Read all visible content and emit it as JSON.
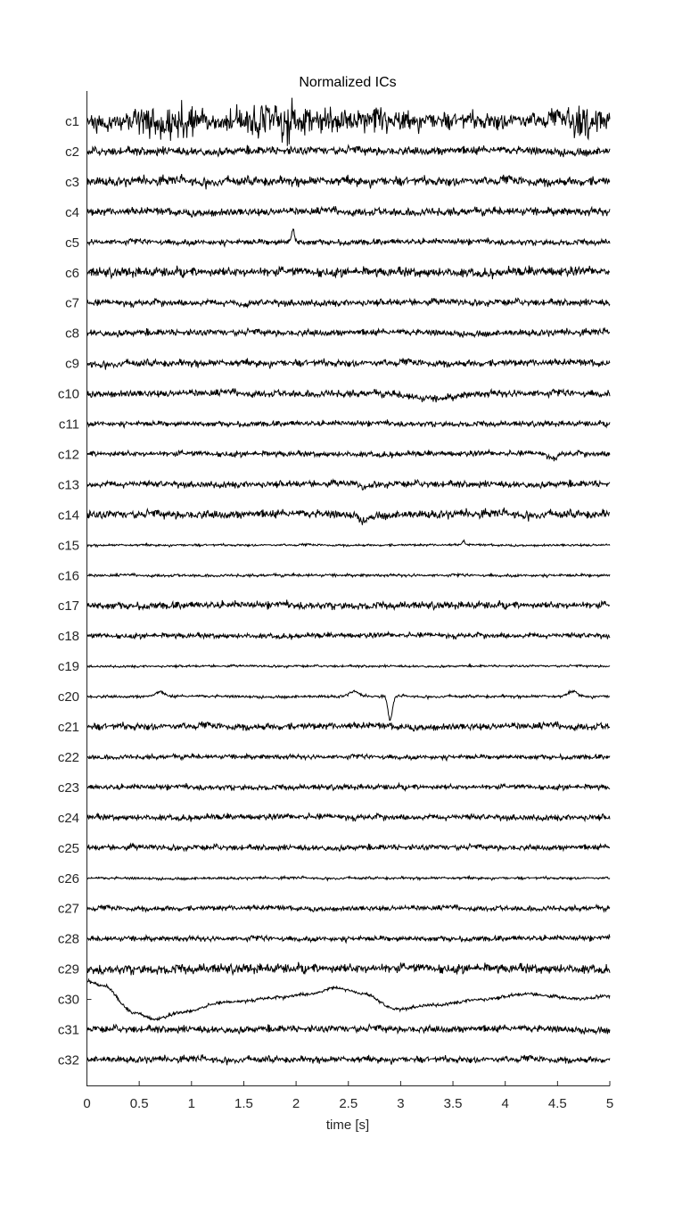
{
  "chart_data": {
    "type": "line",
    "title": "Normalized ICs",
    "xlabel": "time [s]",
    "ylabel": "",
    "xlim": [
      0,
      5
    ],
    "xticks": [
      "0",
      "0.5",
      "1",
      "1.5",
      "2",
      "2.5",
      "3",
      "3.5",
      "4",
      "4.5",
      "5"
    ],
    "grid": false,
    "colors": {
      "trace": "#000000",
      "highlight_label": "#ff0000",
      "label": "#262626",
      "axis": "#262626"
    },
    "highlighted_channel": "c1",
    "series": [
      {
        "name": "c1",
        "amp": 0.95,
        "features": [
          {
            "t": 0.8,
            "w": 0.35,
            "kind": "burst",
            "a": 2.2
          },
          {
            "t": 1.9,
            "w": 0.6,
            "kind": "burst",
            "a": 2.0
          },
          {
            "t": 2.8,
            "w": 0.3,
            "kind": "burst",
            "a": 1.5
          },
          {
            "t": 4.8,
            "w": 0.22,
            "kind": "burst",
            "a": 2.0
          }
        ]
      },
      {
        "name": "c2",
        "amp": 0.45,
        "features": []
      },
      {
        "name": "c3",
        "amp": 0.5,
        "features": []
      },
      {
        "name": "c4",
        "amp": 0.42,
        "features": []
      },
      {
        "name": "c5",
        "amp": 0.3,
        "features": [
          {
            "t": 1.97,
            "w": 0.02,
            "kind": "spike",
            "a": -2.0
          }
        ]
      },
      {
        "name": "c6",
        "amp": 0.5,
        "features": []
      },
      {
        "name": "c7",
        "amp": 0.35,
        "features": [
          {
            "t": 1.5,
            "w": 0.06,
            "kind": "bump",
            "a": 0.6
          }
        ]
      },
      {
        "name": "c8",
        "amp": 0.35,
        "features": []
      },
      {
        "name": "c9",
        "amp": 0.38,
        "features": []
      },
      {
        "name": "c10",
        "amp": 0.38,
        "features": [
          {
            "t": 3.3,
            "w": 0.3,
            "kind": "bump",
            "a": 0.9
          }
        ]
      },
      {
        "name": "c11",
        "amp": 0.28,
        "features": []
      },
      {
        "name": "c12",
        "amp": 0.3,
        "features": [
          {
            "t": 4.45,
            "w": 0.06,
            "kind": "bump",
            "a": 0.6
          }
        ]
      },
      {
        "name": "c13",
        "amp": 0.35,
        "features": [
          {
            "t": 2.65,
            "w": 0.04,
            "kind": "bump",
            "a": 0.7
          }
        ]
      },
      {
        "name": "c14",
        "amp": 0.45,
        "features": [
          {
            "t": 2.65,
            "w": 0.05,
            "kind": "bump",
            "a": 0.8
          }
        ]
      },
      {
        "name": "c15",
        "amp": 0.12,
        "features": [
          {
            "t": 3.6,
            "w": 0.02,
            "kind": "spike",
            "a": -0.6
          }
        ]
      },
      {
        "name": "c16",
        "amp": 0.15,
        "features": []
      },
      {
        "name": "c17",
        "amp": 0.38,
        "features": []
      },
      {
        "name": "c18",
        "amp": 0.28,
        "features": []
      },
      {
        "name": "c19",
        "amp": 0.12,
        "features": []
      },
      {
        "name": "c20",
        "amp": 0.15,
        "features": [
          {
            "t": 2.9,
            "w": 0.03,
            "kind": "spike",
            "a": 3.8
          },
          {
            "t": 0.7,
            "w": 0.06,
            "kind": "bump",
            "a": -0.7
          },
          {
            "t": 2.55,
            "w": 0.06,
            "kind": "bump",
            "a": -0.8
          },
          {
            "t": 4.65,
            "w": 0.06,
            "kind": "bump",
            "a": -0.8
          }
        ]
      },
      {
        "name": "c21",
        "amp": 0.38,
        "features": []
      },
      {
        "name": "c22",
        "amp": 0.25,
        "features": []
      },
      {
        "name": "c23",
        "amp": 0.28,
        "features": []
      },
      {
        "name": "c24",
        "amp": 0.32,
        "features": []
      },
      {
        "name": "c25",
        "amp": 0.3,
        "features": []
      },
      {
        "name": "c26",
        "amp": 0.14,
        "features": []
      },
      {
        "name": "c27",
        "amp": 0.28,
        "features": []
      },
      {
        "name": "c28",
        "amp": 0.28,
        "features": []
      },
      {
        "name": "c29",
        "amp": 0.5,
        "features": []
      },
      {
        "name": "c30",
        "amp": 0.18,
        "features": [
          {
            "t": 0.0,
            "w": 0.0,
            "kind": "slow",
            "a": 1.0
          }
        ]
      },
      {
        "name": "c31",
        "amp": 0.38,
        "features": []
      },
      {
        "name": "c32",
        "amp": 0.35,
        "features": []
      }
    ]
  }
}
